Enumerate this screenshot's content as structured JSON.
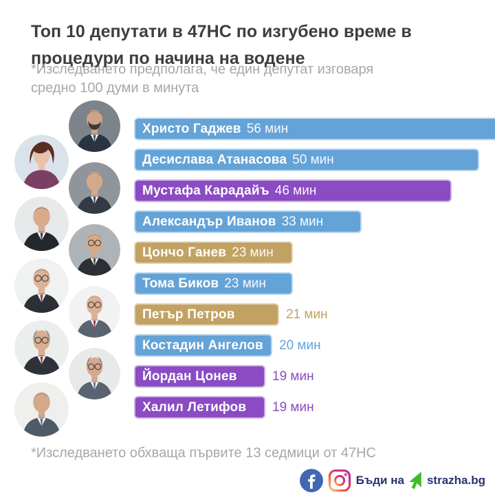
{
  "header": {
    "title_lines": [
      "Топ 10 депутати в 47НС по изгубено време в",
      "процедури по начина на водене"
    ],
    "subtitle_lines": [
      "*Изследването предполага, че един депутат изговаря",
      "средно 100 думи в минута"
    ]
  },
  "footnote": "*Изследването обхваща първите 13 седмици от 47НС",
  "footer": {
    "cta_text": "Бъди на",
    "site_name": "strazha.bg",
    "facebook_icon": "facebook",
    "instagram_icon": "instagram",
    "cursor_icon": "cursor-arrow",
    "text_color": "#283272",
    "facebook_color": "#4267b2",
    "cursor_color": "#3cbc2a"
  },
  "colors": {
    "blue": "#64a3d7",
    "purple": "#8a4bc3",
    "tan": "#c2a263",
    "title_text": "#3e3e3e",
    "muted_text": "#a7a7a7"
  },
  "chart_data": {
    "type": "bar",
    "orientation": "horizontal",
    "title": "Топ 10 депутати в 47НС по изгубено време в процедури по начина на водене",
    "unit": "мин",
    "xlim": [
      0,
      56
    ],
    "grid": false,
    "legend": "none",
    "categories": [
      "Христо Гаджев",
      "Десислава Атанасова",
      "Мустафа Карадайъ",
      "Александър Иванов",
      "Цончо Ганев",
      "Тома Биков",
      "Петър Петров",
      "Костадин Ангелов",
      "Йордан Цонев",
      "Халил Летифов"
    ],
    "values": [
      56,
      50,
      46,
      33,
      23,
      23,
      21,
      20,
      19,
      19
    ],
    "bars": [
      {
        "name": "Христо Гаджев",
        "value": 56,
        "value_label": "56 мин",
        "color": "#64a3d7",
        "value_position": "inside",
        "avatar": {
          "bg": "#7d838a",
          "suit": "#2a3440",
          "skin": "#cda48a",
          "hair": "#2b241f",
          "tie": "#3a4a6b",
          "style": "male",
          "glasses": false,
          "beard": true
        }
      },
      {
        "name": "Десислава Атанасова",
        "value": 50,
        "value_label": "50 мин",
        "color": "#64a3d7",
        "value_position": "inside",
        "avatar": {
          "bg": "#dbe3ea",
          "suit": "#7b3f63",
          "skin": "#e8c2a8",
          "hair": "#5a2d22",
          "tie": "#7b3f63",
          "style": "female",
          "glasses": false,
          "beard": false
        }
      },
      {
        "name": "Мустафа Карадайъ",
        "value": 46,
        "value_label": "46 мин",
        "color": "#8a4bc3",
        "value_position": "inside",
        "avatar": {
          "bg": "#8f959b",
          "suit": "#333a45",
          "skin": "#d3a98c",
          "hair": "#4a453f",
          "tie": "#3b4252",
          "style": "male",
          "glasses": false,
          "beard": false
        }
      },
      {
        "name": "Александър Иванов",
        "value": 33,
        "value_label": "33 мин",
        "color": "#64a3d7",
        "value_position": "inside",
        "avatar": {
          "bg": "#e7e9ea",
          "suit": "#23272e",
          "skin": "#d8ab8d",
          "hair": "#231f1c",
          "tie": "#2f3a52",
          "style": "male",
          "glasses": false,
          "beard": false
        }
      },
      {
        "name": "Цончо Ганев",
        "value": 23,
        "value_label": "23 мин",
        "color": "#c2a263",
        "value_position": "inside",
        "avatar": {
          "bg": "#aeb3b8",
          "suit": "#2c3036",
          "skin": "#d6ab8d",
          "hair": "#2e2a26",
          "tie": "#343a40",
          "style": "male",
          "glasses": true,
          "beard": false
        }
      },
      {
        "name": "Тома Биков",
        "value": 23,
        "value_label": "23 мин",
        "color": "#64a3d7",
        "value_position": "inside",
        "avatar": {
          "bg": "#f0f1f1",
          "suit": "#2b2f36",
          "skin": "#dcb295",
          "hair": "#332d28",
          "tie": "#a03038",
          "style": "male",
          "glasses": true,
          "beard": false
        }
      },
      {
        "name": "Петър Петров",
        "value": 21,
        "value_label": "21 мин",
        "color": "#c2a263",
        "value_position": "outside",
        "avatar": {
          "bg": "#f2f2f2",
          "suit": "#5a6470",
          "skin": "#dcb195",
          "hair": "#8a6b4e",
          "tie": "#a03038",
          "style": "male",
          "glasses": true,
          "beard": false
        }
      },
      {
        "name": "Костадин Ангелов",
        "value": 20,
        "value_label": "20 мин",
        "color": "#64a3d7",
        "value_position": "outside",
        "avatar": {
          "bg": "#eceeee",
          "suit": "#2e323a",
          "skin": "#d9ad90",
          "hair": "#9a938a",
          "tie": "#a03038",
          "style": "balding",
          "glasses": true,
          "beard": false
        }
      },
      {
        "name": "Йордан Цонев",
        "value": 19,
        "value_label": "19 мин",
        "color": "#8a4bc3",
        "value_position": "outside",
        "avatar": {
          "bg": "#e8eaea",
          "suit": "#596470",
          "skin": "#d6a98c",
          "hair": "#8e8e8e",
          "tie": "#6b7280",
          "style": "balding",
          "glasses": true,
          "beard": false
        }
      },
      {
        "name": "Халил Летифов",
        "value": 19,
        "value_label": "19 мин",
        "color": "#8a4bc3",
        "value_position": "outside",
        "avatar": {
          "bg": "#efefee",
          "suit": "#4e5a66",
          "skin": "#d4a98b",
          "hair": "#3a342e",
          "tie": "#5b6b7a",
          "style": "male",
          "glasses": false,
          "beard": false
        }
      }
    ]
  }
}
